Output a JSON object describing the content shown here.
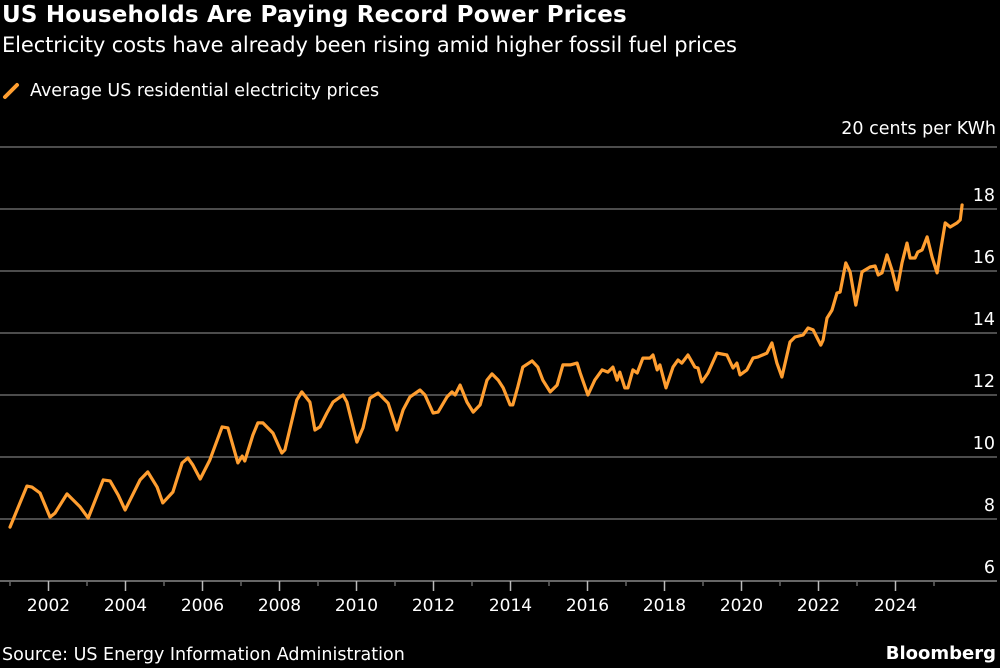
{
  "header": {
    "title": "US Households Are Paying Record Power Prices",
    "subtitle": "Electricity costs have already been rising amid higher fossil fuel prices"
  },
  "footer": {
    "source": "Source: US Energy Information Administration",
    "brand": "Bloomberg"
  },
  "colors": {
    "background": "#000000",
    "series": "#FF9E30",
    "gridline": "#666666",
    "text": "#FFFFFF"
  },
  "chart_data": {
    "type": "line",
    "title": "US Households Are Paying Record Power Prices",
    "subtitle": "Electricity costs have already been rising amid higher fossil fuel prices",
    "xlabel": "",
    "ylabel": "cents per KWh",
    "unit_label": "20 cents per KWh",
    "y_top_label_value": 20,
    "ylim": [
      6,
      20
    ],
    "yticks": [
      6,
      8,
      10,
      12,
      14,
      16,
      18,
      20
    ],
    "ytick_labels": [
      "6",
      "8",
      "10",
      "12",
      "14",
      "16",
      "18"
    ],
    "xlim": [
      2001,
      2026.6
    ],
    "xticks_major": [
      2002,
      2004,
      2006,
      2008,
      2010,
      2012,
      2014,
      2016,
      2018,
      2020,
      2022,
      2024
    ],
    "xticks_minor": [
      2001,
      2003,
      2005,
      2007,
      2009,
      2011,
      2013,
      2015,
      2017,
      2019,
      2021,
      2023,
      2025
    ],
    "xtick_labels": [
      "2002",
      "2004",
      "2006",
      "2008",
      "2010",
      "2012",
      "2014",
      "2016",
      "2018",
      "2020",
      "2022",
      "2024"
    ],
    "grid": true,
    "legend_position": "top-left",
    "series": [
      {
        "name": "Average US residential electricity prices",
        "x": [
          2001.0,
          2001.44,
          2001.57,
          2001.78,
          2002.04,
          2002.17,
          2002.48,
          2002.82,
          2003.03,
          2003.42,
          2003.6,
          2003.81,
          2003.99,
          2004.38,
          2004.58,
          2004.82,
          2004.97,
          2005.23,
          2005.47,
          2005.62,
          2005.75,
          2005.94,
          2006.19,
          2006.51,
          2006.66,
          2006.92,
          2007.03,
          2007.1,
          2007.31,
          2007.44,
          2007.57,
          2007.83,
          2008.06,
          2008.14,
          2008.45,
          2008.58,
          2008.79,
          2008.92,
          2009.05,
          2009.23,
          2009.39,
          2009.65,
          2009.75,
          2010.01,
          2010.17,
          2010.35,
          2010.56,
          2010.82,
          2011.05,
          2011.21,
          2011.39,
          2011.65,
          2011.78,
          2011.99,
          2012.12,
          2012.35,
          2012.48,
          2012.56,
          2012.69,
          2012.87,
          2013.03,
          2013.21,
          2013.39,
          2013.52,
          2013.68,
          2013.81,
          2013.99,
          2014.06,
          2014.19,
          2014.32,
          2014.56,
          2014.71,
          2014.84,
          2015.03,
          2015.21,
          2015.36,
          2015.55,
          2015.73,
          2015.81,
          2016.01,
          2016.19,
          2016.38,
          2016.53,
          2016.66,
          2016.77,
          2016.84,
          2016.97,
          2017.05,
          2017.18,
          2017.29,
          2017.44,
          2017.62,
          2017.7,
          2017.81,
          2017.88,
          2018.04,
          2018.22,
          2018.35,
          2018.45,
          2018.61,
          2018.79,
          2018.87,
          2018.97,
          2019.13,
          2019.36,
          2019.62,
          2019.78,
          2019.88,
          2019.96,
          2020.14,
          2020.3,
          2020.43,
          2020.66,
          2020.79,
          2020.92,
          2021.05,
          2021.26,
          2021.39,
          2021.6,
          2021.73,
          2021.86,
          2022.06,
          2022.12,
          2022.22,
          2022.35,
          2022.48,
          2022.56,
          2022.71,
          2022.82,
          2022.97,
          2023.13,
          2023.34,
          2023.47,
          2023.55,
          2023.65,
          2023.78,
          2023.91,
          2024.04,
          2024.17,
          2024.3,
          2024.38,
          2024.51,
          2024.58,
          2024.69,
          2024.82,
          2024.95,
          2025.08,
          2025.16,
          2025.29,
          2025.42,
          2025.6,
          2025.68,
          2025.73
        ],
        "values": [
          7.74,
          9.06,
          9.03,
          8.84,
          8.06,
          8.19,
          8.81,
          8.39,
          8.03,
          9.26,
          9.23,
          8.77,
          8.29,
          9.26,
          9.52,
          9.03,
          8.52,
          8.87,
          9.81,
          9.97,
          9.74,
          9.29,
          9.9,
          10.97,
          10.94,
          9.81,
          10.03,
          9.87,
          10.71,
          11.1,
          11.1,
          10.77,
          10.13,
          10.23,
          11.84,
          12.1,
          11.77,
          10.87,
          10.97,
          11.42,
          11.77,
          12.0,
          11.77,
          10.48,
          10.94,
          11.9,
          12.06,
          11.74,
          10.87,
          11.52,
          11.94,
          12.16,
          12.0,
          11.42,
          11.45,
          11.94,
          12.1,
          12.0,
          12.32,
          11.77,
          11.45,
          11.68,
          12.48,
          12.68,
          12.48,
          12.23,
          11.68,
          11.68,
          12.26,
          12.9,
          13.1,
          12.9,
          12.48,
          12.1,
          12.32,
          12.97,
          12.97,
          13.03,
          12.71,
          12.0,
          12.48,
          12.81,
          12.74,
          12.9,
          12.48,
          12.74,
          12.23,
          12.23,
          12.81,
          12.71,
          13.19,
          13.19,
          13.29,
          12.81,
          12.97,
          12.23,
          12.9,
          13.13,
          13.03,
          13.29,
          12.9,
          12.87,
          12.42,
          12.71,
          13.35,
          13.29,
          12.87,
          13.03,
          12.65,
          12.81,
          13.19,
          13.23,
          13.35,
          13.68,
          13.03,
          12.58,
          13.71,
          13.87,
          13.94,
          14.16,
          14.1,
          13.61,
          13.77,
          14.48,
          14.74,
          15.29,
          15.32,
          16.26,
          15.97,
          14.9,
          15.97,
          16.13,
          16.16,
          15.87,
          15.94,
          16.52,
          16.03,
          15.39,
          16.26,
          16.9,
          16.42,
          16.42,
          16.61,
          16.68,
          17.1,
          16.45,
          15.94,
          16.58,
          17.55,
          17.42,
          17.55,
          17.65,
          18.13
        ]
      }
    ]
  }
}
